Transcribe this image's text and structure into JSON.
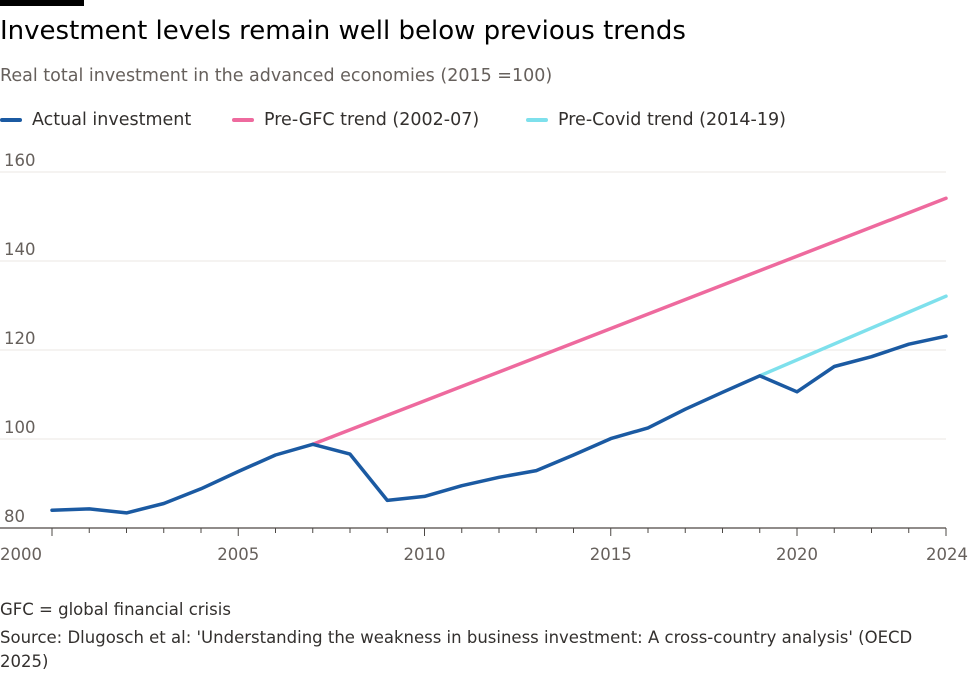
{
  "header": {
    "title": "Investment levels remain well below previous trends",
    "subtitle": "Real total investment in the advanced economies (2015 =100)"
  },
  "legend": [
    {
      "label": "Actual investment",
      "color": "#1b5aa2"
    },
    {
      "label": "Pre-GFC trend (2002-07)",
      "color": "#ee6a9e"
    },
    {
      "label": "Pre-Covid trend (2014-19)",
      "color": "#7ee0ec"
    }
  ],
  "chart_data": {
    "type": "line",
    "title": "Investment levels remain well below previous trends",
    "subtitle": "Real total investment in the advanced economies (2015 =100)",
    "xlabel": "",
    "ylabel": "",
    "xlim": [
      2000,
      2024
    ],
    "ylim": [
      80,
      160
    ],
    "xticks": [
      2000,
      2005,
      2010,
      2015,
      2020,
      2024
    ],
    "yticks": [
      80,
      100,
      120,
      140,
      160
    ],
    "grid": "horizontal",
    "legend_position": "top",
    "series": [
      {
        "name": "Actual investment",
        "color": "#1b5aa2",
        "x": [
          2000,
          2001,
          2002,
          2003,
          2004,
          2005,
          2006,
          2007,
          2008,
          2009,
          2010,
          2011,
          2012,
          2013,
          2014,
          2015,
          2016,
          2017,
          2018,
          2019,
          2020,
          2021,
          2022,
          2023,
          2024
        ],
        "values": [
          84,
          84.3,
          83.4,
          85.5,
          88.8,
          92.7,
          96.4,
          98.8,
          96.6,
          86.2,
          87.1,
          89.5,
          91.4,
          92.9,
          96.4,
          100.1,
          102.5,
          106.7,
          110.5,
          114.2,
          110.6,
          116.3,
          118.5,
          121.3,
          123.1
        ]
      },
      {
        "name": "Pre-GFC trend (2002-07)",
        "color": "#ee6a9e",
        "x": [
          2007,
          2024
        ],
        "values": [
          98.8,
          154.1
        ]
      },
      {
        "name": "Pre-Covid trend (2014-19)",
        "color": "#7ee0ec",
        "x": [
          2019,
          2024
        ],
        "values": [
          114.2,
          132.1
        ]
      }
    ]
  },
  "footer": {
    "note": "GFC = global financial crisis",
    "source": "Source: Dlugosch et al: 'Understanding the weakness in business investment: A cross-country analysis' (OECD 2025)"
  }
}
